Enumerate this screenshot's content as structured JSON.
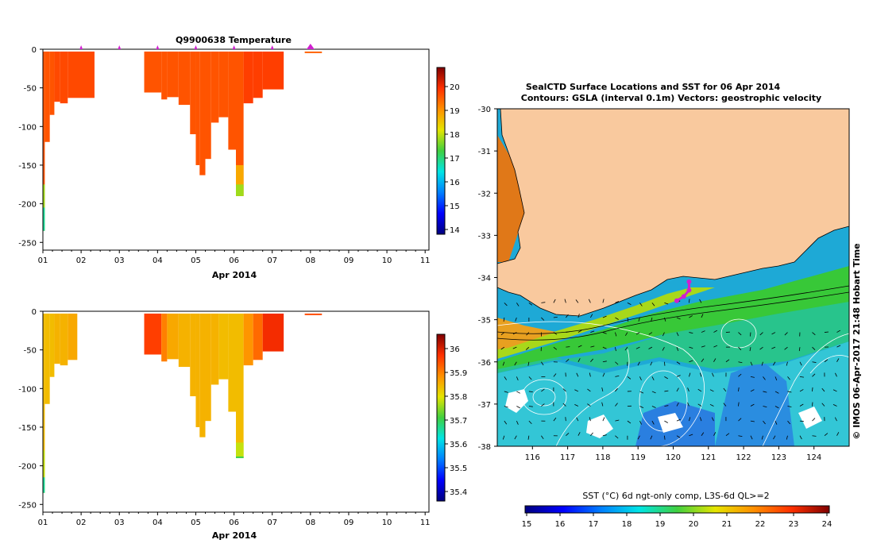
{
  "chart_data": [
    {
      "type": "heatmap",
      "panel": "temperature-profile",
      "title": "Q9900638  Temperature",
      "xlabel": "Apr 2014",
      "x_ticks": [
        "01",
        "02",
        "03",
        "04",
        "05",
        "06",
        "07",
        "08",
        "09",
        "10",
        "11"
      ],
      "y_ticks": [
        "0",
        "-50",
        "-100",
        "-150",
        "-200",
        "-250"
      ],
      "ylim": [
        -260,
        0
      ],
      "xlim": [
        1,
        11.1
      ],
      "colorbar": {
        "ticks": [
          "14",
          "15",
          "16",
          "17",
          "18",
          "19",
          "20"
        ],
        "range": [
          13.8,
          20.8
        ]
      },
      "markers_days": [
        2,
        3,
        4,
        5,
        6,
        7,
        8
      ],
      "profiles": [
        {
          "start": 1.0,
          "end": 1.05,
          "depth": 235,
          "value": 19.6,
          "deep": [
            [
              -175,
              17.8
            ],
            [
              -205,
              16.8
            ]
          ]
        },
        {
          "start": 1.05,
          "end": 1.18,
          "depth": 120,
          "value": 19.6
        },
        {
          "start": 1.18,
          "end": 1.3,
          "depth": 85,
          "value": 19.6
        },
        {
          "start": 1.3,
          "end": 1.45,
          "depth": 68,
          "value": 19.7
        },
        {
          "start": 1.45,
          "end": 1.65,
          "depth": 70,
          "value": 19.7
        },
        {
          "start": 1.65,
          "end": 2.35,
          "depth": 63,
          "value": 19.7
        },
        {
          "start": 3.65,
          "end": 4.1,
          "depth": 56,
          "value": 19.6
        },
        {
          "start": 4.1,
          "end": 4.25,
          "depth": 65,
          "value": 19.6
        },
        {
          "start": 4.25,
          "end": 4.55,
          "depth": 62,
          "value": 19.6
        },
        {
          "start": 4.55,
          "end": 4.85,
          "depth": 72,
          "value": 19.6
        },
        {
          "start": 4.85,
          "end": 5.0,
          "depth": 110,
          "value": 19.6
        },
        {
          "start": 5.0,
          "end": 5.1,
          "depth": 150,
          "value": 19.6
        },
        {
          "start": 5.1,
          "end": 5.25,
          "depth": 163,
          "value": 19.6
        },
        {
          "start": 5.25,
          "end": 5.4,
          "depth": 142,
          "value": 19.6
        },
        {
          "start": 5.4,
          "end": 5.6,
          "depth": 95,
          "value": 19.6
        },
        {
          "start": 5.6,
          "end": 5.85,
          "depth": 88,
          "value": 19.6
        },
        {
          "start": 5.85,
          "end": 6.05,
          "depth": 130,
          "value": 19.6
        },
        {
          "start": 6.05,
          "end": 6.25,
          "depth": 190,
          "value": 19.6,
          "deep": [
            [
              -150,
              18.8
            ],
            [
              -175,
              17.8
            ]
          ]
        },
        {
          "start": 6.25,
          "end": 6.5,
          "depth": 70,
          "value": 19.8
        },
        {
          "start": 6.5,
          "end": 6.75,
          "depth": 63,
          "value": 19.8
        },
        {
          "start": 6.75,
          "end": 7.3,
          "depth": 52,
          "value": 19.8
        },
        {
          "start": 7.85,
          "end": 8.3,
          "depth": 5,
          "value": 19.5
        }
      ]
    },
    {
      "type": "heatmap",
      "panel": "salinity-profile",
      "title": "",
      "xlabel": "Apr 2014",
      "x_ticks": [
        "01",
        "02",
        "03",
        "04",
        "05",
        "06",
        "07",
        "08",
        "09",
        "10",
        "11"
      ],
      "y_ticks": [
        "0",
        "-50",
        "-100",
        "-150",
        "-200",
        "-250"
      ],
      "ylim": [
        -260,
        0
      ],
      "xlim": [
        1,
        11.1
      ],
      "colorbar": {
        "ticks": [
          "35.4",
          "35.5",
          "35.6",
          "35.7",
          "35.8",
          "35.9",
          "36"
        ],
        "range": [
          35.36,
          36.06
        ]
      },
      "profiles": [
        {
          "start": 1.0,
          "end": 1.05,
          "depth": 235,
          "value": 35.84,
          "deep": [
            [
              -180,
              35.78
            ],
            [
              -215,
              35.66
            ]
          ]
        },
        {
          "start": 1.05,
          "end": 1.18,
          "depth": 120,
          "value": 35.84
        },
        {
          "start": 1.18,
          "end": 1.3,
          "depth": 85,
          "value": 35.84
        },
        {
          "start": 1.3,
          "end": 1.45,
          "depth": 68,
          "value": 35.85
        },
        {
          "start": 1.45,
          "end": 1.65,
          "depth": 70,
          "value": 35.85
        },
        {
          "start": 1.65,
          "end": 1.9,
          "depth": 63,
          "value": 35.86
        },
        {
          "start": 3.65,
          "end": 4.1,
          "depth": 56,
          "value": 35.96
        },
        {
          "start": 4.1,
          "end": 4.25,
          "depth": 65,
          "value": 35.9
        },
        {
          "start": 4.25,
          "end": 4.55,
          "depth": 62,
          "value": 35.86
        },
        {
          "start": 4.55,
          "end": 4.85,
          "depth": 72,
          "value": 35.85
        },
        {
          "start": 4.85,
          "end": 5.0,
          "depth": 110,
          "value": 35.85
        },
        {
          "start": 5.0,
          "end": 5.1,
          "depth": 150,
          "value": 35.85
        },
        {
          "start": 5.1,
          "end": 5.25,
          "depth": 163,
          "value": 35.85
        },
        {
          "start": 5.25,
          "end": 5.4,
          "depth": 142,
          "value": 35.85
        },
        {
          "start": 5.4,
          "end": 5.6,
          "depth": 95,
          "value": 35.85
        },
        {
          "start": 5.6,
          "end": 5.85,
          "depth": 88,
          "value": 35.84
        },
        {
          "start": 5.85,
          "end": 6.05,
          "depth": 130,
          "value": 35.84
        },
        {
          "start": 6.05,
          "end": 6.25,
          "depth": 190,
          "value": 35.84,
          "deep": [
            [
              -170,
              35.78
            ],
            [
              -188,
              35.7
            ]
          ]
        },
        {
          "start": 6.25,
          "end": 6.5,
          "depth": 70,
          "value": 35.88
        },
        {
          "start": 6.5,
          "end": 6.75,
          "depth": 63,
          "value": 35.92
        },
        {
          "start": 6.75,
          "end": 7.3,
          "depth": 52,
          "value": 35.98
        },
        {
          "start": 7.85,
          "end": 8.3,
          "depth": 5,
          "value": 35.95
        }
      ]
    },
    {
      "type": "heatmap",
      "panel": "sst-map",
      "title_line1": "SealCTD Surface Locations and SST for 06 Apr 2014",
      "title_line2": "Contours: GSLA (interval 0.1m) Vectors: geostrophic velocity",
      "x_ticks": [
        "116",
        "117",
        "118",
        "119",
        "120",
        "121",
        "122",
        "123",
        "124"
      ],
      "y_ticks": [
        "-30",
        "-31",
        "-32",
        "-33",
        "-34",
        "-35",
        "-36",
        "-37",
        "-38"
      ],
      "xlim": [
        115,
        125
      ],
      "ylim": [
        -38,
        -30
      ],
      "side_label": "© IMOS 06-Apr-2017 21:48 Hobart Time",
      "colorbar": {
        "label": "SST (°C) 6d ngt-only comp, L3S-6d QL>=2",
        "ticks": [
          "15",
          "16",
          "17",
          "18",
          "19",
          "20",
          "21",
          "22",
          "23",
          "24"
        ],
        "range": [
          15,
          24
        ]
      },
      "seal_track": [
        [
          120.1,
          -34.55
        ],
        [
          120.3,
          -34.45
        ],
        [
          120.45,
          -34.3
        ],
        [
          120.45,
          -34.1
        ]
      ]
    }
  ]
}
